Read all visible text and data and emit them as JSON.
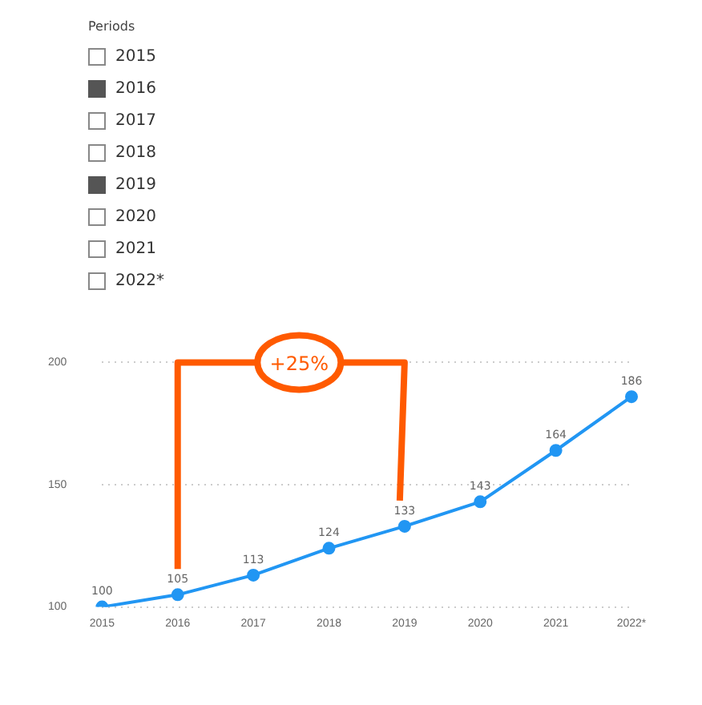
{
  "chart_data": {
    "type": "line",
    "categories": [
      "2015",
      "2016",
      "2017",
      "2018",
      "2019",
      "2020",
      "2021",
      "2022*"
    ],
    "values": [
      100,
      105,
      113,
      124,
      133,
      143,
      164,
      186
    ],
    "color": "#2196f3",
    "ylim": [
      100,
      200
    ],
    "yticks": [
      100,
      150,
      200
    ],
    "grid": "y",
    "marker": "circle",
    "line_style": "solid",
    "data_labels": true,
    "legend": false,
    "annotations": [
      "Periods",
      "+25%"
    ]
  }
}
